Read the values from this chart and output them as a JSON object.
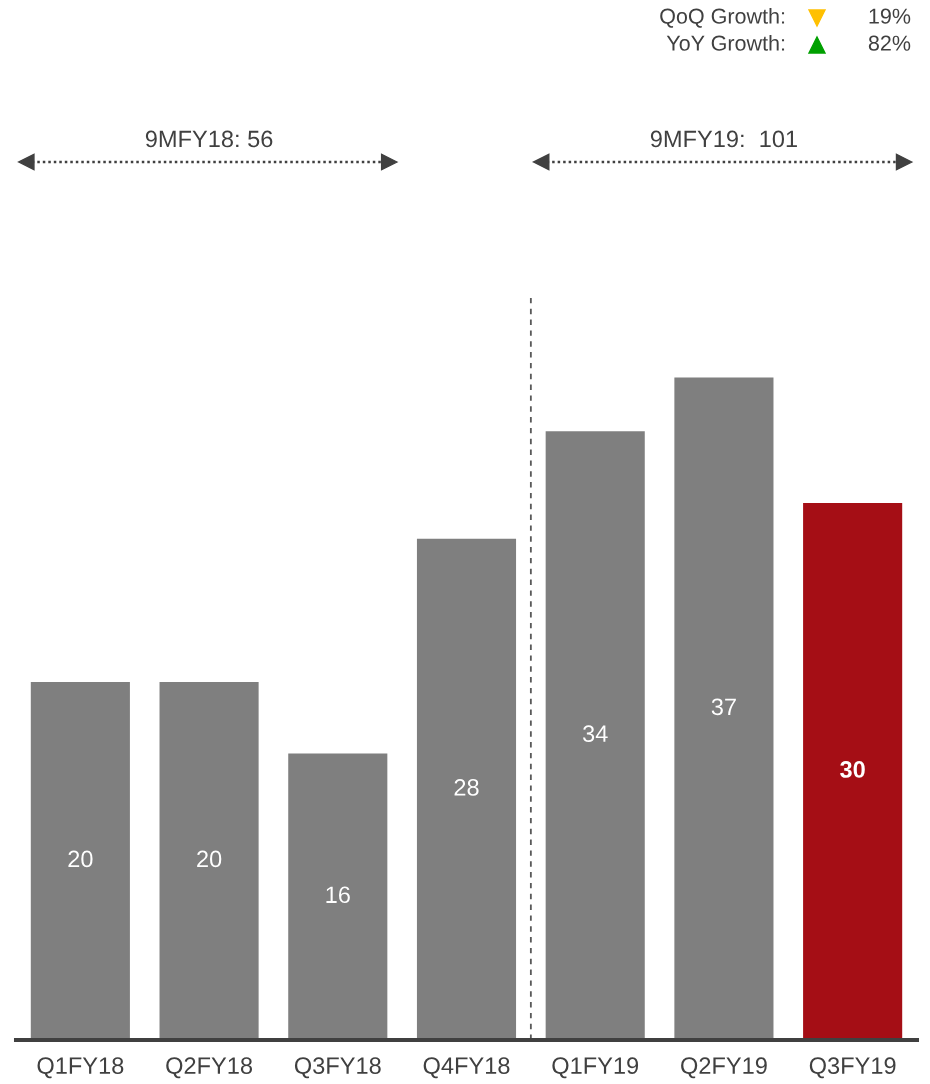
{
  "chart_data": {
    "type": "bar",
    "categories": [
      "Q1FY18",
      "Q2FY18",
      "Q3FY18",
      "Q4FY18",
      "Q1FY19",
      "Q2FY19",
      "Q3FY19"
    ],
    "values": [
      20,
      20,
      16,
      28,
      34,
      37,
      30
    ],
    "colors": [
      "#7f7f7f",
      "#7f7f7f",
      "#7f7f7f",
      "#7f7f7f",
      "#7f7f7f",
      "#7f7f7f",
      "#a50e15"
    ],
    "data_labels": true,
    "tick_labels": "x",
    "annotations": [
      "QoQ Growth:",
      "19%",
      "YoY Growth:",
      "82%",
      "9MFY18: 56",
      "9MFY19:  101"
    ]
  }
}
